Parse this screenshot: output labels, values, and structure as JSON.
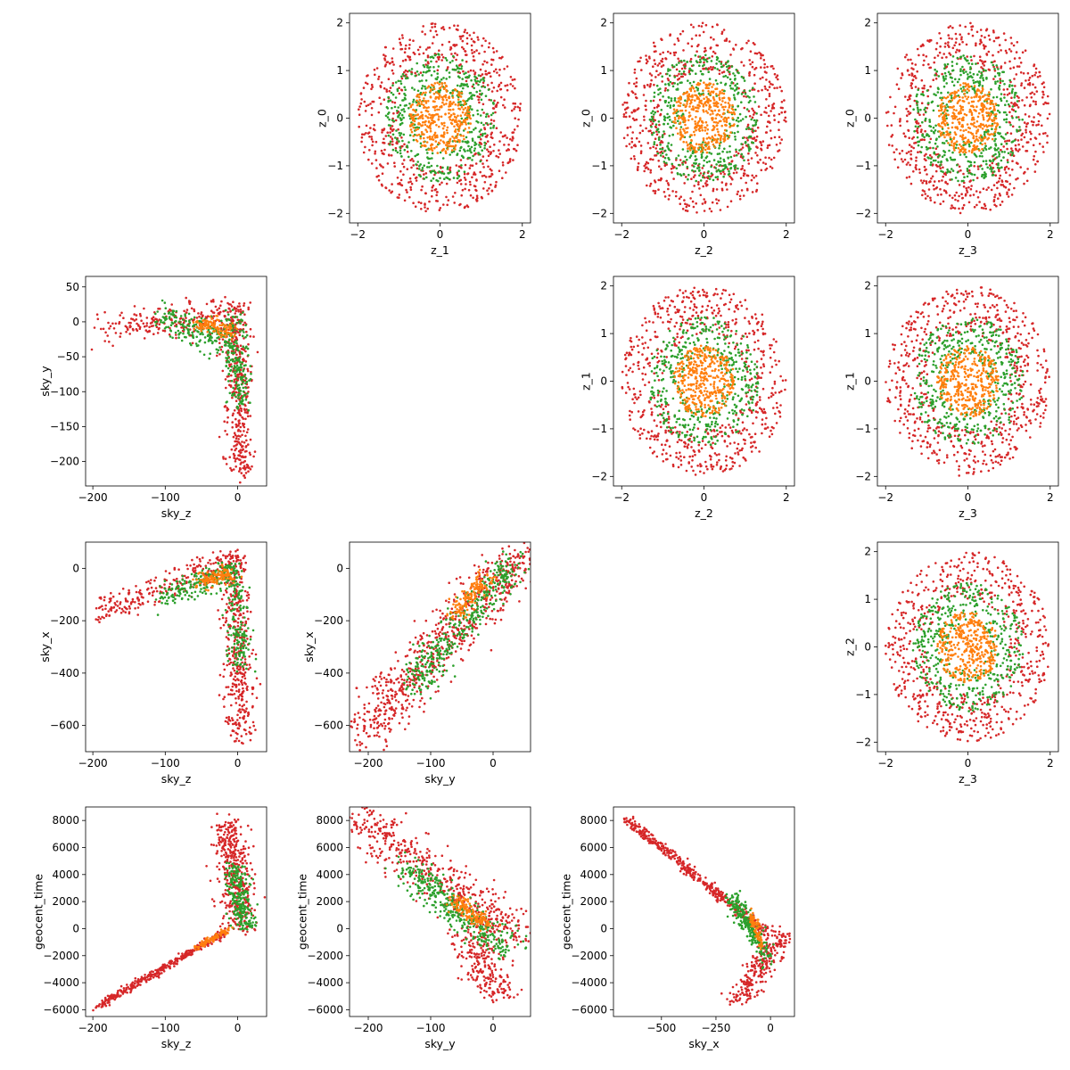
{
  "figure": {
    "series_colors": {
      "outer": "#d62728",
      "middle": "#2ca02c",
      "inner": "#ff7f0e"
    }
  },
  "chart_data": [
    {
      "id": "p01",
      "type": "scatter",
      "xlabel": "z_1",
      "ylabel": "z_0",
      "xlim": [
        -2.2,
        2.2
      ],
      "ylim": [
        -2.2,
        2.2
      ],
      "xticks": [
        -2,
        0,
        2
      ],
      "yticks": [
        -2,
        -1,
        0,
        1,
        2
      ],
      "shape": "rings",
      "rings": [
        {
          "series": "outer",
          "rmin": 1.0,
          "rmax": 2.0,
          "n": 650
        },
        {
          "series": "middle",
          "rmin": 0.5,
          "rmax": 1.35,
          "n": 450
        },
        {
          "series": "inner",
          "rmin": 0,
          "rmax": 0.75,
          "n": 380
        }
      ]
    },
    {
      "id": "p02",
      "type": "scatter",
      "xlabel": "z_2",
      "ylabel": "z_0",
      "xlim": [
        -2.2,
        2.2
      ],
      "ylim": [
        -2.2,
        2.2
      ],
      "xticks": [
        -2,
        0,
        2
      ],
      "yticks": [
        -2,
        -1,
        0,
        1,
        2
      ],
      "shape": "rings",
      "rings": [
        {
          "series": "outer",
          "rmin": 1.0,
          "rmax": 2.0,
          "n": 650
        },
        {
          "series": "middle",
          "rmin": 0.5,
          "rmax": 1.35,
          "n": 450
        },
        {
          "series": "inner",
          "rmin": 0,
          "rmax": 0.75,
          "n": 380
        }
      ]
    },
    {
      "id": "p03",
      "type": "scatter",
      "xlabel": "z_3",
      "ylabel": "z_0",
      "xlim": [
        -2.2,
        2.2
      ],
      "ylim": [
        -2.2,
        2.2
      ],
      "xticks": [
        -2,
        0,
        2
      ],
      "yticks": [
        -2,
        -1,
        0,
        1,
        2
      ],
      "shape": "rings",
      "rings": [
        {
          "series": "outer",
          "rmin": 1.0,
          "rmax": 2.0,
          "n": 650
        },
        {
          "series": "middle",
          "rmin": 0.5,
          "rmax": 1.35,
          "n": 450
        },
        {
          "series": "inner",
          "rmin": 0,
          "rmax": 0.75,
          "n": 380
        }
      ]
    },
    {
      "id": "p12",
      "type": "scatter",
      "xlabel": "z_2",
      "ylabel": "z_1",
      "xlim": [
        -2.2,
        2.2
      ],
      "ylim": [
        -2.2,
        2.2
      ],
      "xticks": [
        -2,
        0,
        2
      ],
      "yticks": [
        -2,
        -1,
        0,
        1,
        2
      ],
      "shape": "rings",
      "rings": [
        {
          "series": "outer",
          "rmin": 1.0,
          "rmax": 2.0,
          "n": 650
        },
        {
          "series": "middle",
          "rmin": 0.5,
          "rmax": 1.35,
          "n": 450
        },
        {
          "series": "inner",
          "rmin": 0,
          "rmax": 0.75,
          "n": 380
        }
      ]
    },
    {
      "id": "p13",
      "type": "scatter",
      "xlabel": "z_3",
      "ylabel": "z_1",
      "xlim": [
        -2.2,
        2.2
      ],
      "ylim": [
        -2.2,
        2.2
      ],
      "xticks": [
        -2,
        0,
        2
      ],
      "yticks": [
        -2,
        -1,
        0,
        1,
        2
      ],
      "shape": "rings",
      "rings": [
        {
          "series": "outer",
          "rmin": 1.0,
          "rmax": 2.0,
          "n": 650
        },
        {
          "series": "middle",
          "rmin": 0.5,
          "rmax": 1.35,
          "n": 450
        },
        {
          "series": "inner",
          "rmin": 0,
          "rmax": 0.75,
          "n": 380
        }
      ]
    },
    {
      "id": "p23",
      "type": "scatter",
      "xlabel": "z_3",
      "ylabel": "z_2",
      "xlim": [
        -2.2,
        2.2
      ],
      "ylim": [
        -2.2,
        2.2
      ],
      "xticks": [
        -2,
        0,
        2
      ],
      "yticks": [
        -2,
        -1,
        0,
        1,
        2
      ],
      "shape": "rings",
      "rings": [
        {
          "series": "outer",
          "rmin": 1.0,
          "rmax": 2.0,
          "n": 650
        },
        {
          "series": "middle",
          "rmin": 0.5,
          "rmax": 1.35,
          "n": 450
        },
        {
          "series": "inner",
          "rmin": 0,
          "rmax": 0.75,
          "n": 380
        }
      ]
    },
    {
      "id": "p10",
      "type": "scatter",
      "xlabel": "sky_z",
      "ylabel": "sky_y",
      "xlim": [
        -210,
        40
      ],
      "ylim": [
        -235,
        65
      ],
      "xticks": [
        -200,
        -100,
        0
      ],
      "yticks": [
        -200,
        -150,
        -100,
        -50,
        0,
        50
      ],
      "shape": "segments",
      "segments": [
        {
          "series": "outer",
          "from": [
            -195,
            -10
          ],
          "to": [
            -10,
            10
          ],
          "spread": [
            5,
            12
          ],
          "n": 220
        },
        {
          "series": "outer",
          "from": [
            -5,
            25
          ],
          "to": [
            5,
            -220
          ],
          "spread": [
            10,
            5
          ],
          "n": 420
        },
        {
          "series": "middle",
          "from": [
            -110,
            5
          ],
          "to": [
            -10,
            -30
          ],
          "spread": [
            6,
            12
          ],
          "n": 200
        },
        {
          "series": "middle",
          "from": [
            -5,
            10
          ],
          "to": [
            5,
            -120
          ],
          "spread": [
            8,
            5
          ],
          "n": 180
        },
        {
          "series": "inner",
          "from": [
            -55,
            0
          ],
          "to": [
            -5,
            -15
          ],
          "spread": [
            5,
            6
          ],
          "n": 120
        }
      ]
    },
    {
      "id": "p20",
      "type": "scatter",
      "xlabel": "sky_z",
      "ylabel": "sky_x",
      "xlim": [
        -210,
        40
      ],
      "ylim": [
        -700,
        100
      ],
      "xticks": [
        -200,
        -100,
        0
      ],
      "yticks": [
        -600,
        -400,
        -200,
        0
      ],
      "shape": "segments",
      "segments": [
        {
          "series": "outer",
          "from": [
            -195,
            -175
          ],
          "to": [
            -10,
            25
          ],
          "spread": [
            5,
            30
          ],
          "n": 230
        },
        {
          "series": "outer",
          "from": [
            -5,
            60
          ],
          "to": [
            5,
            -660
          ],
          "spread": [
            10,
            12
          ],
          "n": 420
        },
        {
          "series": "middle",
          "from": [
            -110,
            -110
          ],
          "to": [
            -10,
            -20
          ],
          "spread": [
            6,
            25
          ],
          "n": 200
        },
        {
          "series": "middle",
          "from": [
            -5,
            20
          ],
          "to": [
            5,
            -380
          ],
          "spread": [
            8,
            12
          ],
          "n": 180
        },
        {
          "series": "inner",
          "from": [
            -55,
            -50
          ],
          "to": [
            -5,
            -15
          ],
          "spread": [
            5,
            15
          ],
          "n": 120
        }
      ]
    },
    {
      "id": "p21",
      "type": "scatter",
      "xlabel": "sky_y",
      "ylabel": "sky_x",
      "xlim": [
        -230,
        60
      ],
      "ylim": [
        -700,
        100
      ],
      "xticks": [
        -200,
        -100,
        0
      ],
      "yticks": [
        -600,
        -400,
        -200,
        0
      ],
      "shape": "segments",
      "segments": [
        {
          "series": "outer",
          "from": [
            -215,
            -640
          ],
          "to": [
            40,
            40
          ],
          "spread": [
            22,
            45
          ],
          "n": 700
        },
        {
          "series": "middle",
          "from": [
            -130,
            -450
          ],
          "to": [
            30,
            20
          ],
          "spread": [
            14,
            30
          ],
          "n": 380
        },
        {
          "series": "inner",
          "from": [
            -60,
            -170
          ],
          "to": [
            -10,
            -30
          ],
          "spread": [
            8,
            20
          ],
          "n": 140
        }
      ]
    },
    {
      "id": "p30",
      "type": "scatter",
      "xlabel": "sky_z",
      "ylabel": "geocent_time",
      "xlim": [
        -210,
        40
      ],
      "ylim": [
        -6500,
        9000
      ],
      "xticks": [
        -200,
        -100,
        0
      ],
      "yticks": [
        -6000,
        -4000,
        -2000,
        0,
        2000,
        4000,
        6000,
        8000
      ],
      "shape": "segments",
      "segments": [
        {
          "series": "outer",
          "from": [
            -195,
            -5800
          ],
          "to": [
            -15,
            -200
          ],
          "spread": [
            3,
            120
          ],
          "n": 380
        },
        {
          "series": "outer",
          "from": [
            -15,
            8100
          ],
          "to": [
            5,
            -100
          ],
          "spread": [
            12,
            300
          ],
          "n": 420
        },
        {
          "series": "middle",
          "from": [
            -5,
            4500
          ],
          "to": [
            10,
            0
          ],
          "spread": [
            8,
            250
          ],
          "n": 250
        },
        {
          "series": "inner",
          "from": [
            -60,
            -1500
          ],
          "to": [
            -10,
            0
          ],
          "spread": [
            3,
            80
          ],
          "n": 80
        }
      ]
    },
    {
      "id": "p31",
      "type": "scatter",
      "xlabel": "sky_y",
      "ylabel": "geocent_time",
      "xlim": [
        -230,
        60
      ],
      "ylim": [
        -6500,
        9000
      ],
      "xticks": [
        -200,
        -100,
        0
      ],
      "yticks": [
        -6000,
        -4000,
        -2000,
        0,
        2000,
        4000,
        6000,
        8000
      ],
      "shape": "segments",
      "segments": [
        {
          "series": "outer",
          "from": [
            -215,
            8000
          ],
          "to": [
            40,
            -500
          ],
          "spread": [
            22,
            800
          ],
          "n": 500
        },
        {
          "series": "outer",
          "from": [
            -40,
            -200
          ],
          "to": [
            10,
            -5200
          ],
          "spread": [
            20,
            400
          ],
          "n": 220
        },
        {
          "series": "middle",
          "from": [
            -140,
            4500
          ],
          "to": [
            20,
            -1500
          ],
          "spread": [
            14,
            600
          ],
          "n": 380
        },
        {
          "series": "inner",
          "from": [
            -60,
            2000
          ],
          "to": [
            -10,
            200
          ],
          "spread": [
            8,
            250
          ],
          "n": 150
        }
      ]
    },
    {
      "id": "p32",
      "type": "scatter",
      "xlabel": "sky_x",
      "ylabel": "geocent_time",
      "xlim": [
        -720,
        110
      ],
      "ylim": [
        -6500,
        9000
      ],
      "xticks": [
        -500,
        -250,
        0
      ],
      "yticks": [
        -6000,
        -4000,
        -2000,
        0,
        2000,
        4000,
        6000,
        8000
      ],
      "shape": "segments",
      "segments": [
        {
          "series": "outer",
          "from": [
            -660,
            8100
          ],
          "to": [
            -20,
            -300
          ],
          "spread": [
            12,
            200
          ],
          "n": 420
        },
        {
          "series": "outer",
          "from": [
            60,
            -200
          ],
          "to": [
            -140,
            -5200
          ],
          "spread": [
            30,
            300
          ],
          "n": 260
        },
        {
          "series": "middle",
          "from": [
            -180,
            2300
          ],
          "to": [
            -20,
            -2000
          ],
          "spread": [
            20,
            400
          ],
          "n": 240
        },
        {
          "series": "inner",
          "from": [
            -90,
            1200
          ],
          "to": [
            -40,
            -1200
          ],
          "spread": [
            8,
            150
          ],
          "n": 80
        }
      ]
    }
  ]
}
